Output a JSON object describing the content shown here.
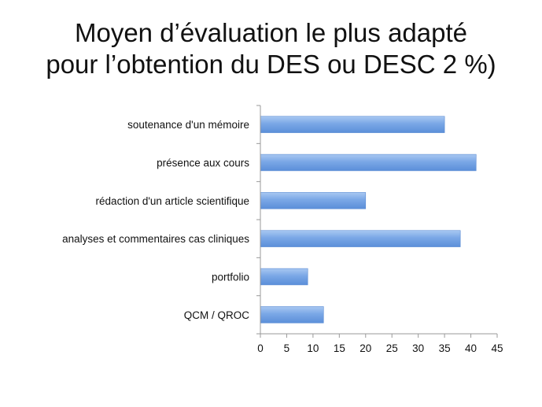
{
  "chart_data": {
    "type": "bar",
    "orientation": "horizontal",
    "title_lines": [
      "Moyen d’évaluation le plus adapté",
      "pour l’obtention du DES ou DESC 2 %)"
    ],
    "categories": [
      "soutenance d'un mémoire",
      "présence aux cours",
      "rédaction d'un article scientifique",
      "analyses et commentaires cas cliniques",
      "portfolio",
      "QCM / QROC"
    ],
    "values": [
      35,
      41,
      20,
      38,
      9,
      12
    ],
    "xlim": [
      0,
      45
    ],
    "xticks": [
      0,
      5,
      10,
      15,
      20,
      25,
      30,
      35,
      40,
      45
    ],
    "grid": false,
    "legend": "none",
    "bar_color": "#7aa7e6"
  }
}
